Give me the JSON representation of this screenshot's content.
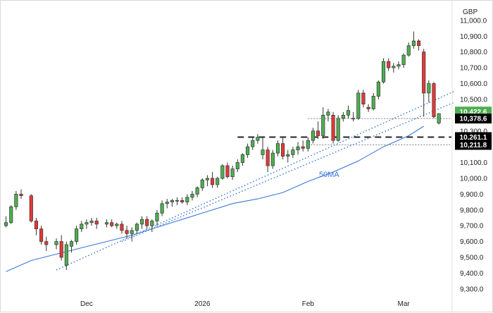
{
  "chart_data": {
    "type": "candlestick",
    "currency": "GBP",
    "y_ticks": [
      "9,300.0",
      "9,400.0",
      "9,500.0",
      "9,600.0",
      "9,700.0",
      "9,800.0",
      "9,900.0",
      "10,000.0",
      "10,100.0",
      "10,200.0",
      "10,300.0",
      "10,400.0",
      "10,500.0",
      "10,600.0",
      "10,700.0",
      "10,800.0",
      "10,900.0",
      "11,000.0"
    ],
    "ylim": [
      9250,
      11080
    ],
    "x_labels": [
      {
        "label": "Dec",
        "index": 16
      },
      {
        "label": "2026",
        "index": 39
      },
      {
        "label": "Feb",
        "index": 60
      },
      {
        "label": "Mar",
        "index": 79
      }
    ],
    "n_slots": 89,
    "candles": [
      [
        9700,
        9760,
        9690,
        9720
      ],
      [
        9720,
        9830,
        9710,
        9820
      ],
      [
        9820,
        9920,
        9800,
        9900
      ],
      [
        9900,
        9930,
        9870,
        9890
      ],
      [
        9890,
        9900,
        9720,
        9730
      ],
      [
        9730,
        9750,
        9640,
        9680
      ],
      [
        9680,
        9700,
        9580,
        9600
      ],
      [
        9600,
        9630,
        9540,
        9580
      ],
      [
        9580,
        9620,
        9550,
        9600
      ],
      [
        9600,
        9640,
        9480,
        9500
      ],
      [
        9450,
        9600,
        9420,
        9580
      ],
      [
        9570,
        9610,
        9530,
        9600
      ],
      [
        9600,
        9700,
        9580,
        9680
      ],
      [
        9680,
        9730,
        9660,
        9710
      ],
      [
        9710,
        9740,
        9680,
        9720
      ],
      [
        9720,
        9750,
        9700,
        9730
      ],
      [
        9730,
        9750,
        9680,
        9710
      ],
      [
        9710,
        9740,
        9690,
        9720
      ],
      [
        9720,
        9740,
        9690,
        9700
      ],
      [
        9700,
        9720,
        9680,
        9710
      ],
      [
        9710,
        9730,
        9650,
        9670
      ],
      [
        9670,
        9700,
        9620,
        9650
      ],
      [
        9650,
        9690,
        9600,
        9670
      ],
      [
        9670,
        9720,
        9650,
        9710
      ],
      [
        9710,
        9760,
        9680,
        9740
      ],
      [
        9740,
        9760,
        9680,
        9700
      ],
      [
        9700,
        9740,
        9660,
        9730
      ],
      [
        9730,
        9800,
        9700,
        9780
      ],
      [
        9780,
        9860,
        9760,
        9840
      ],
      [
        9840,
        9870,
        9810,
        9850
      ],
      [
        9850,
        9870,
        9820,
        9860
      ],
      [
        9860,
        9880,
        9830,
        9860
      ],
      [
        9860,
        9880,
        9840,
        9850
      ],
      [
        9850,
        9900,
        9830,
        9880
      ],
      [
        9880,
        9920,
        9860,
        9900
      ],
      [
        9900,
        9950,
        9880,
        9940
      ],
      [
        9940,
        10000,
        9920,
        9990
      ],
      [
        9990,
        10020,
        9950,
        10000
      ],
      [
        10000,
        10040,
        9940,
        9960
      ],
      [
        9960,
        10010,
        9940,
        10000
      ],
      [
        10000,
        10090,
        9990,
        10080
      ],
      [
        10080,
        10100,
        10000,
        10010
      ],
      [
        10010,
        10080,
        9990,
        10060
      ],
      [
        10060,
        10120,
        10040,
        10100
      ],
      [
        10100,
        10160,
        10080,
        10150
      ],
      [
        10150,
        10220,
        10130,
        10200
      ],
      [
        10200,
        10260,
        10180,
        10240
      ],
      [
        10240,
        10280,
        10220,
        10260
      ],
      [
        10150,
        10260,
        10120,
        10180
      ],
      [
        10180,
        10200,
        10040,
        10080
      ],
      [
        10080,
        10180,
        10060,
        10160
      ],
      [
        10160,
        10240,
        10140,
        10220
      ],
      [
        10220,
        10260,
        10120,
        10140
      ],
      [
        10140,
        10180,
        10100,
        10150
      ],
      [
        10150,
        10200,
        10130,
        10180
      ],
      [
        10180,
        10230,
        10150,
        10200
      ],
      [
        10200,
        10240,
        10170,
        10190
      ],
      [
        10190,
        10260,
        10170,
        10240
      ],
      [
        10240,
        10320,
        10220,
        10300
      ],
      [
        10300,
        10360,
        10250,
        10270
      ],
      [
        10270,
        10450,
        10250,
        10400
      ],
      [
        10400,
        10440,
        10360,
        10420
      ],
      [
        10400,
        10420,
        10220,
        10240
      ],
      [
        10240,
        10400,
        10230,
        10380
      ],
      [
        10380,
        10420,
        10360,
        10400
      ],
      [
        10400,
        10460,
        10380,
        10430
      ],
      [
        10380,
        10420,
        10360,
        10380
      ],
      [
        10380,
        10560,
        10370,
        10540
      ],
      [
        10540,
        10560,
        10450,
        10470
      ],
      [
        10450,
        10470,
        10420,
        10440
      ],
      [
        10440,
        10540,
        10430,
        10520
      ],
      [
        10520,
        10620,
        10500,
        10610
      ],
      [
        10610,
        10760,
        10600,
        10740
      ],
      [
        10740,
        10760,
        10680,
        10700
      ],
      [
        10700,
        10730,
        10670,
        10710
      ],
      [
        10710,
        10740,
        10690,
        10720
      ],
      [
        10720,
        10790,
        10700,
        10780
      ],
      [
        10780,
        10860,
        10770,
        10840
      ],
      [
        10840,
        10930,
        10820,
        10870
      ],
      [
        10870,
        10880,
        10810,
        10840
      ],
      [
        10800,
        10820,
        10390,
        10540
      ],
      [
        10540,
        10620,
        10480,
        10600
      ],
      [
        10600,
        10610,
        10380,
        10390
      ],
      [
        10350,
        10410,
        10340,
        10410
      ]
    ],
    "candle_slots": [
      0,
      1,
      2,
      3,
      5,
      6,
      7,
      8,
      10,
      11,
      12,
      13,
      14,
      15,
      16,
      17,
      18,
      20,
      21,
      22,
      23,
      24,
      25,
      26,
      27,
      28,
      29,
      30,
      31,
      32,
      33,
      34,
      35,
      36,
      37,
      38,
      39,
      40,
      41,
      42,
      43,
      44,
      45,
      46,
      47,
      48,
      49,
      50,
      51,
      52,
      53,
      54,
      55,
      56,
      57,
      58,
      59,
      60,
      61,
      62,
      63,
      64,
      65,
      66,
      67,
      68,
      69,
      70,
      71,
      72,
      73,
      74,
      75,
      76,
      77,
      78,
      79,
      80,
      81,
      82,
      83,
      84,
      85,
      86
    ],
    "moving_average": {
      "name": "50MA",
      "points": [
        [
          0,
          9410
        ],
        [
          5,
          9480
        ],
        [
          10,
          9520
        ],
        [
          15,
          9560
        ],
        [
          20,
          9600
        ],
        [
          25,
          9640
        ],
        [
          30,
          9690
        ],
        [
          35,
          9740
        ],
        [
          40,
          9790
        ],
        [
          45,
          9840
        ],
        [
          50,
          9870
        ],
        [
          55,
          9910
        ],
        [
          60,
          9980
        ],
        [
          65,
          10040
        ],
        [
          70,
          10110
        ],
        [
          75,
          10200
        ],
        [
          80,
          10270
        ],
        [
          83,
          10330
        ]
      ]
    },
    "trendlines": [
      {
        "from": [
          10,
          9420
        ],
        "to": [
          89,
          10550
        ]
      },
      {
        "from": [
          23,
          9600
        ],
        "to": [
          89,
          10480
        ]
      }
    ],
    "levels": [
      {
        "label": "10,422.6",
        "value": 10422.6,
        "color": "#4caf50",
        "style": "none"
      },
      {
        "label": "10,378.6",
        "value": 10378.6,
        "color": "#000000",
        "style": "dotted",
        "from_index": 60
      },
      {
        "label": "10,261.1",
        "value": 10261.1,
        "color": "#000000",
        "style": "dashed",
        "from_index": 46
      },
      {
        "label": "10,211.8",
        "value": 10211.8,
        "color": "#000000",
        "style": "dotted",
        "from_index": 60
      }
    ],
    "colors": {
      "up": "#4caf50",
      "down": "#e53935",
      "ma": "#3a78d8",
      "trend": "#3a78d8"
    }
  }
}
